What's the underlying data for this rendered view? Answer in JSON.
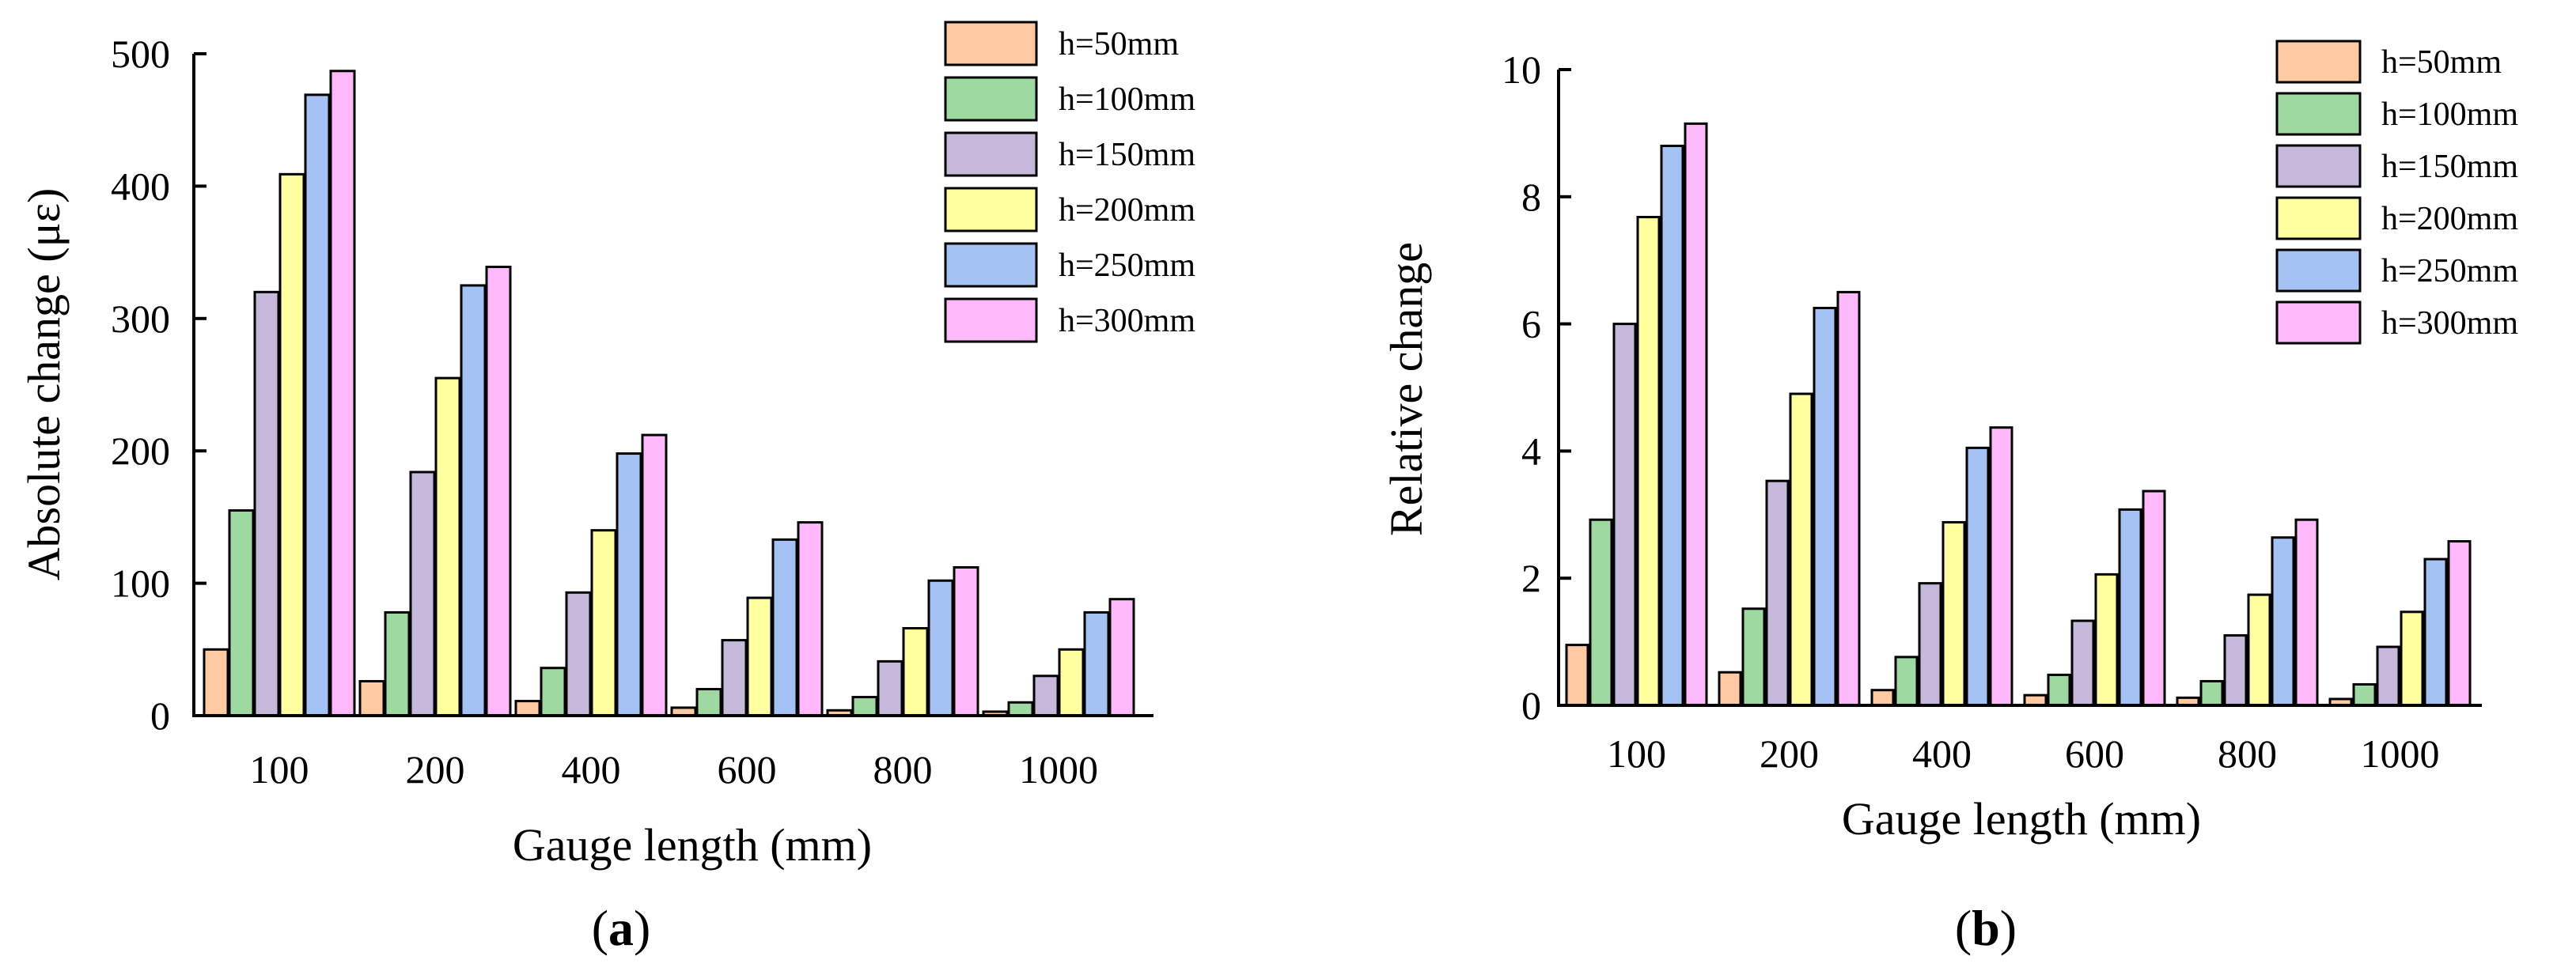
{
  "chart_data": [
    {
      "type": "bar",
      "panel_label": {
        "open": "(",
        "letter": "a",
        "close": ")"
      },
      "categories": [
        "100",
        "200",
        "400",
        "600",
        "800",
        "1000"
      ],
      "xlabel": "Gauge length (mm)",
      "ylabel": "Absolute change (με)",
      "ylim": [
        0,
        500
      ],
      "yticks": [
        "0",
        "100",
        "200",
        "300",
        "400",
        "500"
      ],
      "legend_position": "top-right",
      "series": [
        {
          "name": "h=50mm",
          "color": "#FFC9A1",
          "values": [
            50,
            26,
            11,
            6,
            4,
            3
          ]
        },
        {
          "name": "h=100mm",
          "color": "#9FD9A2",
          "values": [
            155,
            78,
            36,
            20,
            14,
            10
          ]
        },
        {
          "name": "h=150mm",
          "color": "#C6B8DA",
          "values": [
            320,
            184,
            93,
            57,
            41,
            30
          ]
        },
        {
          "name": "h=200mm",
          "color": "#FFFFA0",
          "values": [
            409,
            255,
            140,
            89,
            66,
            50
          ]
        },
        {
          "name": "h=250mm",
          "color": "#A4C2F4",
          "values": [
            469,
            325,
            198,
            133,
            102,
            78
          ]
        },
        {
          "name": "h=300mm",
          "color": "#FFB8FA",
          "values": [
            487,
            339,
            212,
            146,
            112,
            88
          ]
        }
      ]
    },
    {
      "type": "bar",
      "panel_label": {
        "open": "(",
        "letter": "b",
        "close": ")"
      },
      "categories": [
        "100",
        "200",
        "400",
        "600",
        "800",
        "1000"
      ],
      "xlabel": "Gauge length (mm)",
      "ylabel": "Relative change",
      "ylim": [
        0,
        10
      ],
      "yticks": [
        "0",
        "2",
        "4",
        "6",
        "8",
        "10"
      ],
      "legend_position": "top-right",
      "series": [
        {
          "name": "h=50mm",
          "color": "#FFC9A1",
          "values": [
            0.95,
            0.52,
            0.24,
            0.16,
            0.12,
            0.1
          ]
        },
        {
          "name": "h=100mm",
          "color": "#9FD9A2",
          "values": [
            2.92,
            1.52,
            0.76,
            0.48,
            0.38,
            0.33
          ]
        },
        {
          "name": "h=150mm",
          "color": "#C6B8DA",
          "values": [
            6.0,
            3.53,
            1.92,
            1.33,
            1.1,
            0.92
          ]
        },
        {
          "name": "h=200mm",
          "color": "#FFFFA0",
          "values": [
            7.68,
            4.9,
            2.88,
            2.06,
            1.74,
            1.47
          ]
        },
        {
          "name": "h=250mm",
          "color": "#A4C2F4",
          "values": [
            8.8,
            6.25,
            4.05,
            3.08,
            2.64,
            2.3
          ]
        },
        {
          "name": "h=300mm",
          "color": "#FFB8FA",
          "values": [
            9.15,
            6.5,
            4.37,
            3.37,
            2.92,
            2.58
          ]
        }
      ]
    }
  ]
}
